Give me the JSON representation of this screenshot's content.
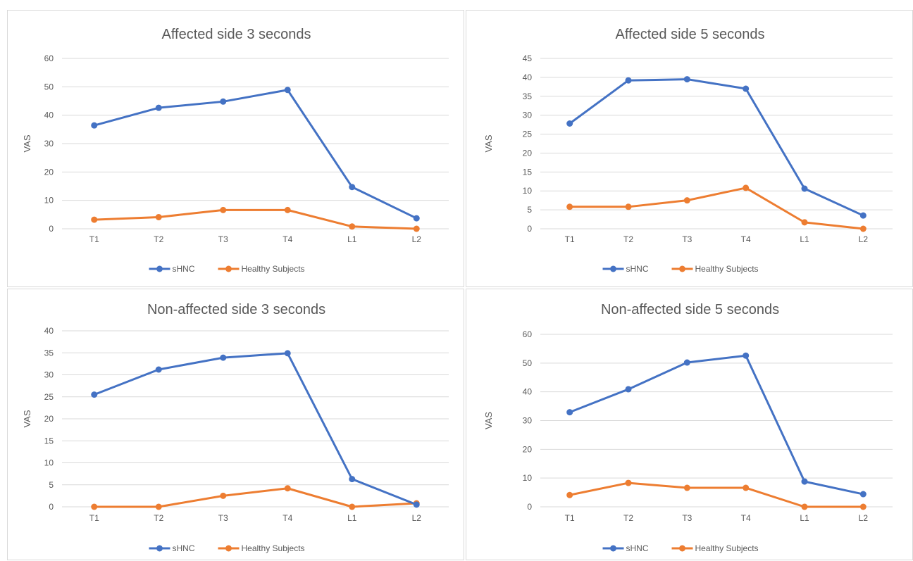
{
  "colors": {
    "sHNC": "#4472c4",
    "Healthy Subjects": "#ed7d31",
    "grid": "#d9d9d9",
    "text": "#595959"
  },
  "chart_data": [
    {
      "type": "line",
      "title": "Affected side 3 seconds",
      "xlabel": "",
      "ylabel": "VAS",
      "categories": [
        "T1",
        "T2",
        "T3",
        "T4",
        "L1",
        "L2"
      ],
      "ylim": [
        0,
        60
      ],
      "yticks": [
        0,
        10,
        20,
        30,
        40,
        50,
        60
      ],
      "grid": true,
      "legend": "bottom",
      "series": [
        {
          "name": "sHNC",
          "values": [
            36.4,
            42.6,
            44.8,
            48.9,
            14.7,
            3.7
          ]
        },
        {
          "name": "Healthy Subjects",
          "values": [
            3.2,
            4.1,
            6.6,
            6.6,
            0.8,
            0
          ]
        }
      ]
    },
    {
      "type": "line",
      "title": "Affected side 5 seconds",
      "xlabel": "",
      "ylabel": "VAS",
      "categories": [
        "T1",
        "T2",
        "T3",
        "T4",
        "L1",
        "L2"
      ],
      "ylim": [
        0,
        45
      ],
      "yticks": [
        0,
        5,
        10,
        15,
        20,
        25,
        30,
        35,
        40,
        45
      ],
      "grid": true,
      "legend": "bottom",
      "series": [
        {
          "name": "sHNC",
          "values": [
            27.8,
            39.2,
            39.5,
            37.0,
            10.6,
            3.5
          ]
        },
        {
          "name": "Healthy Subjects",
          "values": [
            5.8,
            5.8,
            7.5,
            10.8,
            1.7,
            0
          ]
        }
      ]
    },
    {
      "type": "line",
      "title": "Non-affected side 3 seconds",
      "xlabel": "",
      "ylabel": "VAS",
      "categories": [
        "T1",
        "T2",
        "T3",
        "T4",
        "L1",
        "L2"
      ],
      "ylim": [
        0,
        40
      ],
      "yticks": [
        0,
        5,
        10,
        15,
        20,
        25,
        30,
        35,
        40
      ],
      "grid": true,
      "legend": "bottom",
      "series": [
        {
          "name": "sHNC",
          "values": [
            25.5,
            31.2,
            33.9,
            34.9,
            6.3,
            0.5
          ]
        },
        {
          "name": "Healthy Subjects",
          "values": [
            0,
            0,
            2.5,
            4.2,
            0,
            0.8
          ]
        }
      ]
    },
    {
      "type": "line",
      "title": "Non-affected side 5 seconds",
      "xlabel": "",
      "ylabel": "VAS",
      "categories": [
        "T1",
        "T2",
        "T3",
        "T4",
        "L1",
        "L2"
      ],
      "ylim": [
        0,
        60
      ],
      "yticks": [
        0,
        10,
        20,
        30,
        40,
        50,
        60
      ],
      "grid": true,
      "legend": "bottom",
      "series": [
        {
          "name": "sHNC",
          "values": [
            32.9,
            40.9,
            50.2,
            52.6,
            8.8,
            4.4
          ]
        },
        {
          "name": "Healthy Subjects",
          "values": [
            4.1,
            8.3,
            6.6,
            6.6,
            0,
            0
          ]
        }
      ]
    }
  ]
}
